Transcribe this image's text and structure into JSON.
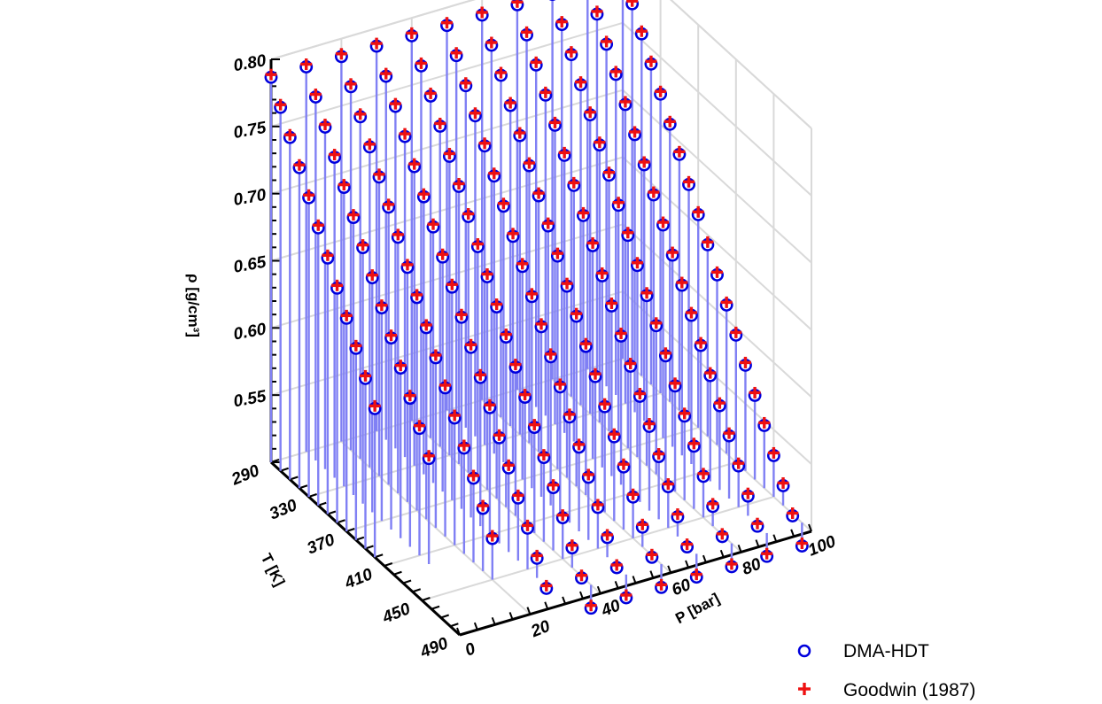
{
  "chart_data": {
    "type": "scatter",
    "title": "",
    "zlabel": "ρ [g/cm³]",
    "ylabel": "T [K]",
    "xlabel": "P [bar]",
    "p_ticks": [
      "0",
      "20",
      "40",
      "60",
      "80",
      "100"
    ],
    "t_ticks": [
      "290",
      "330",
      "370",
      "410",
      "450",
      "490"
    ],
    "rho_ticks": [
      "0.55",
      "0.60",
      "0.65",
      "0.70",
      "0.75",
      "0.80"
    ],
    "p_range": [
      0,
      100
    ],
    "t_range": [
      290,
      490
    ],
    "rho_range": [
      0.5,
      0.8
    ],
    "grid": true,
    "legend_position": "bottom-right",
    "legend": [
      {
        "label": "DMA-HDT",
        "marker": "circle",
        "color": "#0000dd"
      },
      {
        "label": "Goodwin (1987)",
        "marker": "plus",
        "color": "#ee1111"
      }
    ],
    "stem_color": "#8080f4",
    "isobars_bar": [
      0,
      10,
      20,
      30,
      40,
      50,
      60,
      70,
      80,
      90,
      100
    ],
    "temperature_points_K": [
      290,
      300,
      310,
      320,
      330,
      340,
      350,
      360,
      370,
      380,
      390,
      400,
      410,
      420,
      430,
      440,
      450,
      460,
      470,
      480
    ],
    "series": [
      {
        "pressure_bar": 0,
        "rho": [
          0.788,
          0.772,
          0.756,
          0.74,
          0.724,
          0.708,
          0.692,
          0.676,
          0.66,
          0.644,
          0.628,
          0.612
        ]
      },
      {
        "pressure_bar": 10,
        "rho": [
          0.788,
          0.772,
          0.756,
          0.74,
          0.724,
          0.708,
          0.692,
          0.676,
          0.66,
          0.644,
          0.628,
          0.612,
          0.596,
          0.58
        ]
      },
      {
        "pressure_bar": 20,
        "rho": [
          0.788,
          0.772,
          0.756,
          0.74,
          0.724,
          0.708,
          0.692,
          0.676,
          0.66,
          0.644,
          0.628,
          0.612,
          0.596,
          0.58,
          0.564,
          0.548,
          0.532
        ]
      },
      {
        "pressure_bar": 30,
        "rho": [
          0.788,
          0.772,
          0.756,
          0.74,
          0.724,
          0.708,
          0.692,
          0.676,
          0.66,
          0.644,
          0.628,
          0.612,
          0.596,
          0.58,
          0.564,
          0.548,
          0.532,
          0.516,
          0.5
        ]
      },
      {
        "pressure_bar": 40,
        "rho": [
          0.788,
          0.772,
          0.756,
          0.74,
          0.724,
          0.708,
          0.692,
          0.676,
          0.66,
          0.644,
          0.628,
          0.612,
          0.596,
          0.58,
          0.564,
          0.548,
          0.532,
          0.516,
          0.5,
          0.484
        ]
      },
      {
        "pressure_bar": 50,
        "rho": [
          0.788,
          0.772,
          0.756,
          0.74,
          0.724,
          0.708,
          0.692,
          0.676,
          0.66,
          0.644,
          0.628,
          0.612,
          0.596,
          0.58,
          0.564,
          0.548,
          0.532,
          0.516,
          0.5,
          0.484
        ]
      },
      {
        "pressure_bar": 60,
        "rho": [
          0.788,
          0.772,
          0.756,
          0.74,
          0.724,
          0.708,
          0.692,
          0.676,
          0.66,
          0.644,
          0.628,
          0.612,
          0.596,
          0.58,
          0.564,
          0.548,
          0.532,
          0.516,
          0.5,
          0.484
        ]
      },
      {
        "pressure_bar": 70,
        "rho": [
          0.788,
          0.772,
          0.756,
          0.74,
          0.724,
          0.708,
          0.692,
          0.676,
          0.66,
          0.644,
          0.628,
          0.612,
          0.596,
          0.58,
          0.564,
          0.548,
          0.532,
          0.516,
          0.5,
          0.484
        ]
      },
      {
        "pressure_bar": 80,
        "rho": [
          0.788,
          0.772,
          0.756,
          0.74,
          0.724,
          0.708,
          0.692,
          0.676,
          0.66,
          0.644,
          0.628,
          0.612,
          0.596,
          0.58,
          0.564,
          0.548,
          0.532,
          0.516,
          0.5,
          0.484
        ]
      },
      {
        "pressure_bar": 90,
        "rho": [
          0.788,
          0.772,
          0.756,
          0.74,
          0.724,
          0.708,
          0.692,
          0.676,
          0.66,
          0.644,
          0.628,
          0.612,
          0.596,
          0.58,
          0.564,
          0.548,
          0.532,
          0.516,
          0.5,
          0.484
        ]
      },
      {
        "pressure_bar": 100,
        "rho": [
          0.788,
          0.772,
          0.756,
          0.74,
          0.724,
          0.708,
          0.692,
          0.676,
          0.66,
          0.644,
          0.628,
          0.612,
          0.596,
          0.58,
          0.564,
          0.548,
          0.532,
          0.516,
          0.5,
          0.484
        ]
      }
    ]
  }
}
